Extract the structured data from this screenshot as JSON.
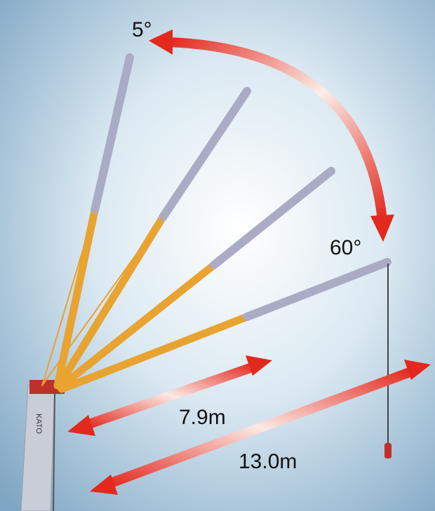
{
  "labels": {
    "angle_min": "5°",
    "angle_max": "60°",
    "length_short": "7.9m",
    "length_long": "13.0m",
    "brand": "KATO"
  }
}
